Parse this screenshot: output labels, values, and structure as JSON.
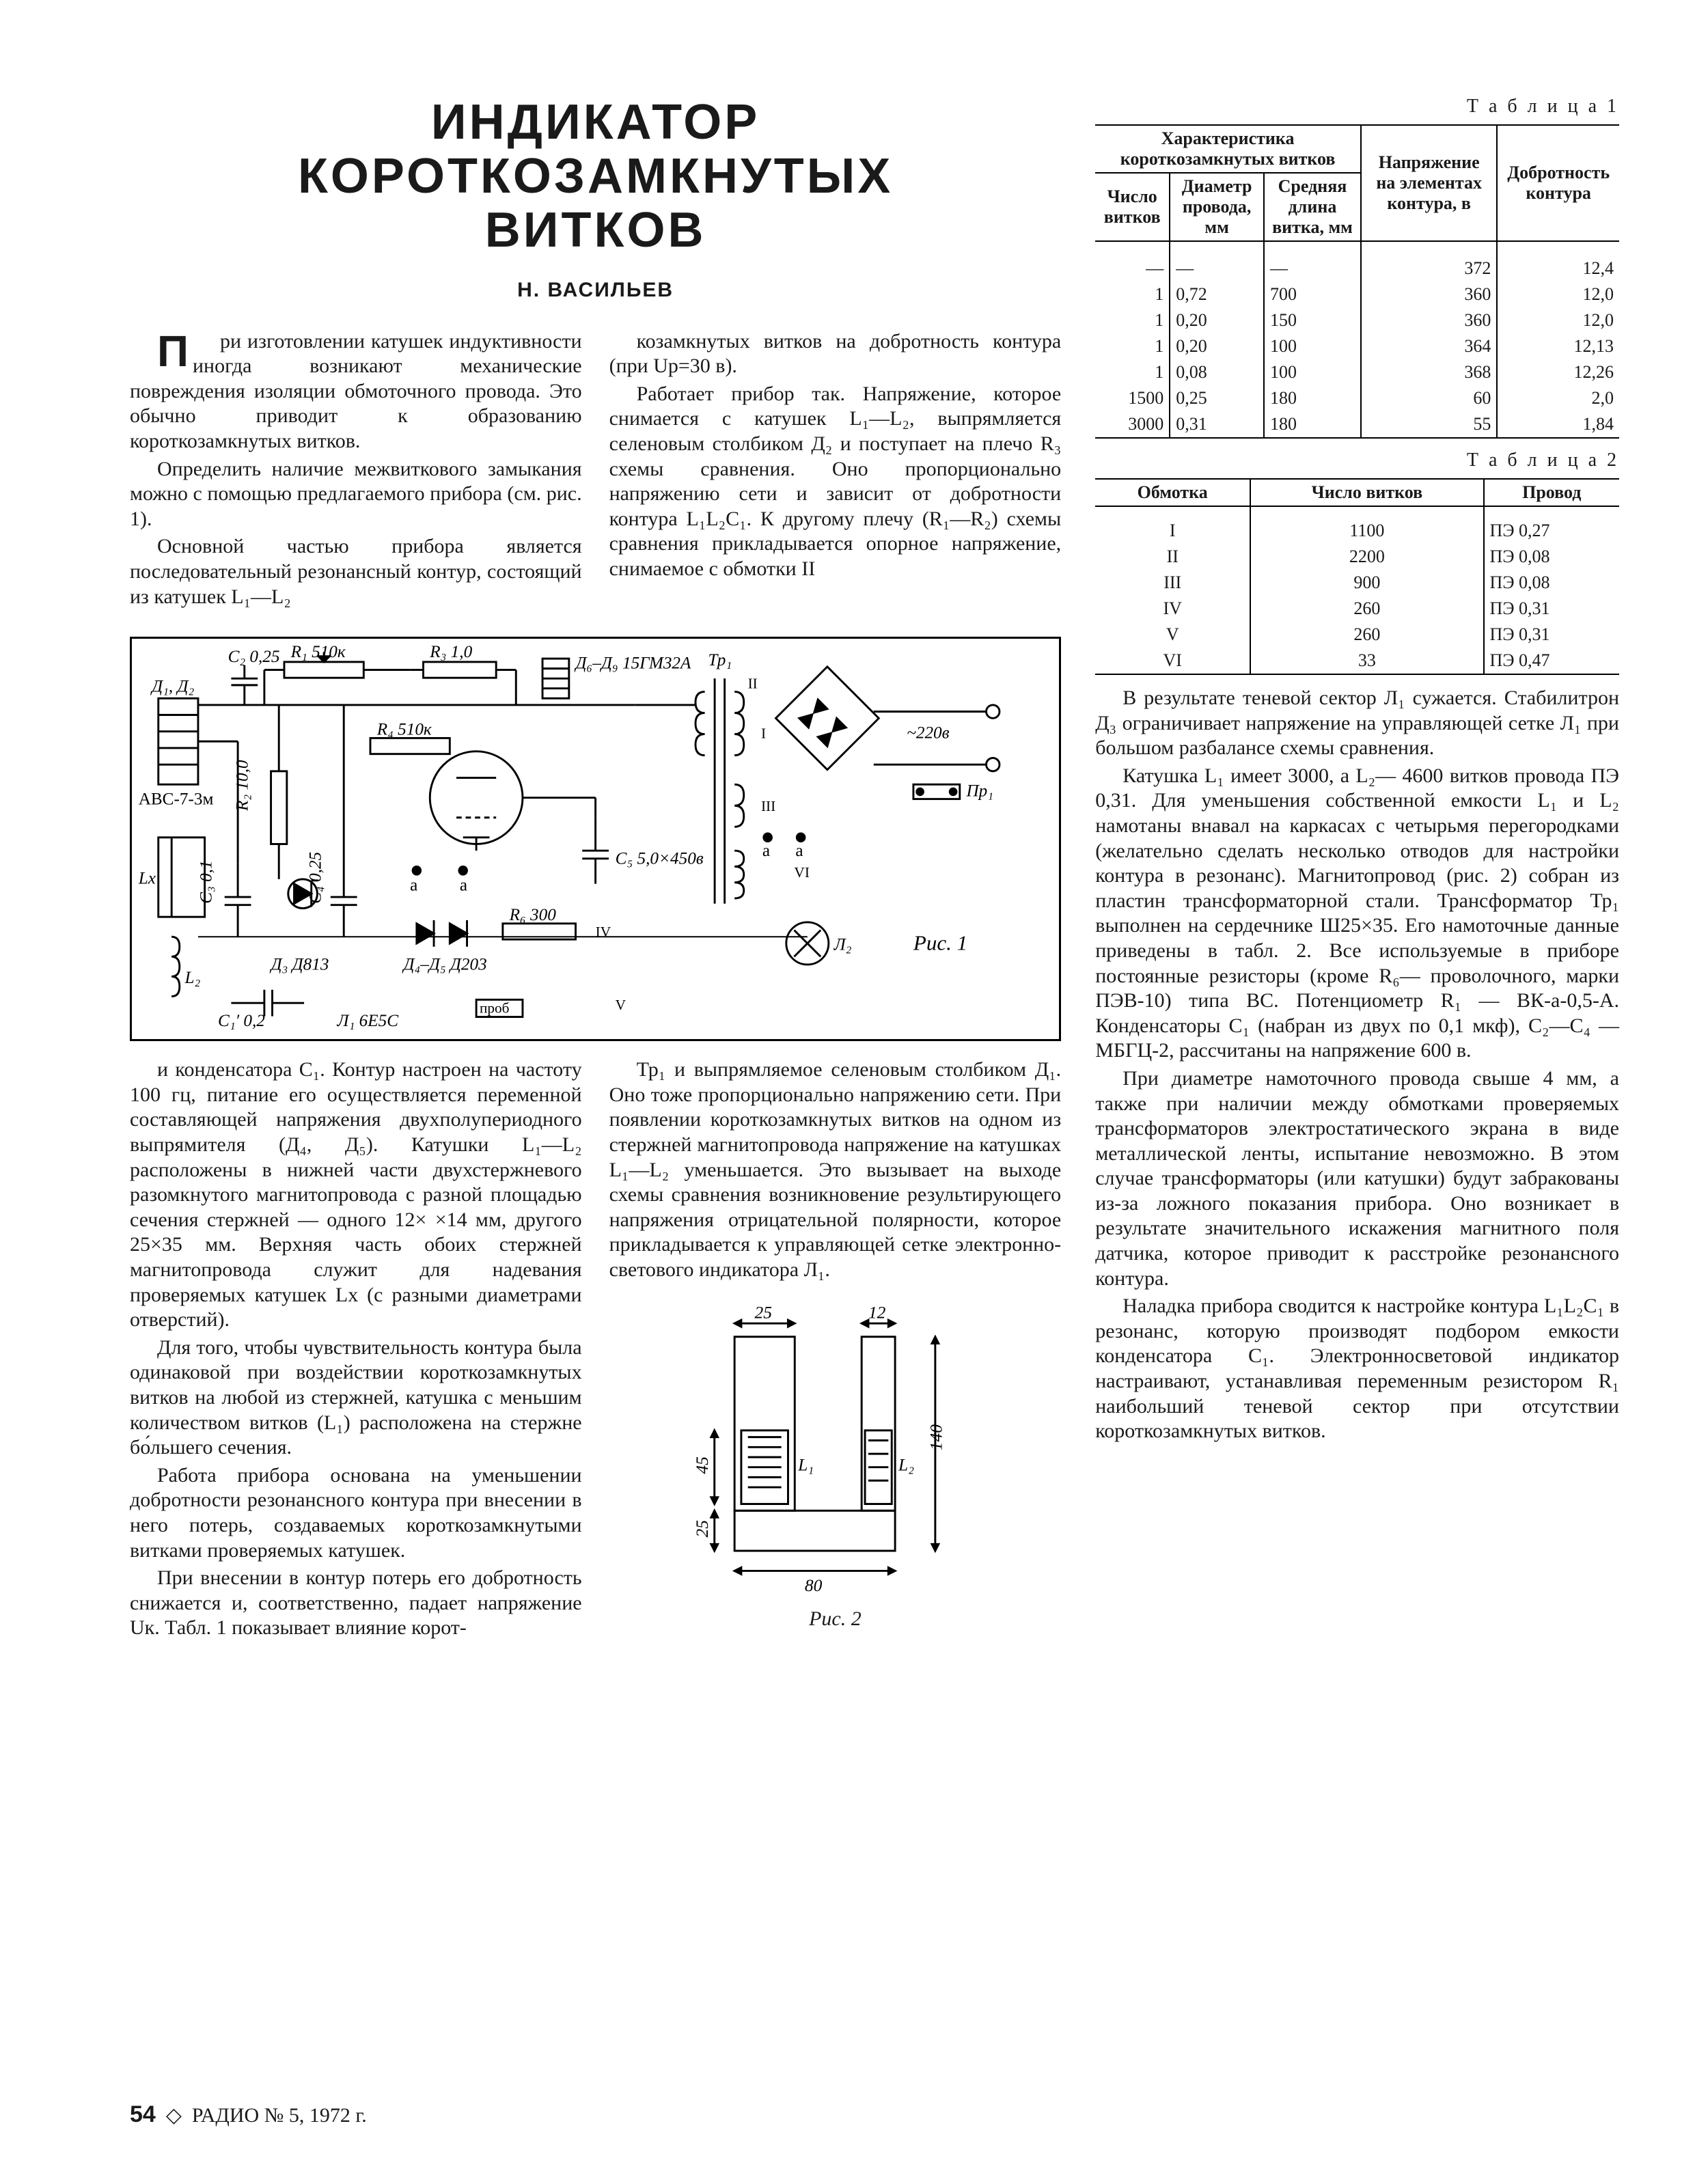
{
  "title_line1": "ИНДИКАТОР",
  "title_line2": "КОРОТКОЗАМКНУТЫХ",
  "title_line3": "ВИТКОВ",
  "author": "Н. ВАСИЛЬЕВ",
  "p_left": [
    "При изготовлении катушек индуктивности иногда возникают механические повреждения изоляции обмоточного провода. Это обычно приводит к образованию короткозамкнутых витков.",
    "Определить наличие межвиткового замыкания можно с помощью предлагаемого прибора (см. рис. 1).",
    "Основной частью прибора является последовательный резонансный контур, состоящий из катушек L₁—L₂",
    "козамкнутых витков на добротность контура (при Uр=30 в).",
    "Работает прибор так. Напряжение, которое снимается с катушек L₁—L₂, выпрямляется селеновым столбиком Д₂ и поступает на плечо R₃ схемы сравнения. Оно пропорционально напряжению сети и зависит от добротности контура L₁L₂C₁. К другому плечу (R₁—R₂) схемы сравнения прикладывается опорное напряжение, снимаемое с обмотки II"
  ],
  "p_after_schematic": [
    "и конденсатора C₁. Контур настроен на частоту 100 гц, питание его осуществляется переменной составляющей напряжения двухполупериодного выпрямителя (Д₄, Д₅). Катушки L₁—L₂ расположены в нижней части двухстержневого разомкнутого магнитопровода с разной площадью сечения стержней — одного 12× ×14 мм, другого 25×35 мм. Верхняя часть обоих стержней магнитопровода служит для надевания проверяемых катушек Lx (с разными диаметрами отверстий).",
    "Для того, чтобы чувствительность контура была одинаковой при воздействии короткозамкнутых витков на любой из стержней, катушка с меньшим количеством витков (L₁) расположена на стержне бо́льшего сечения.",
    "Работа прибора основана на уменьшении добротности резонансного контура при внесении в него потерь, создаваемых короткозамкнутыми витками проверяемых катушек.",
    "При внесении в контур потерь его добротность снижается и, соответственно, падает напряжение Uк. Табл. 1 показывает влияние корот-",
    "Тр₁ и выпрямляемое селеновым столбиком Д₁. Оно тоже пропорционально напряжению сети. При появлении короткозамкнутых витков на одном из стержней магнитопровода напряжение на катушках L₁—L₂ уменьшается. Это вызывает на выходе схемы сравнения возникновение результирующего напряжения отрицательной полярности, которое прикладывается к управляющей сетке электронно-светового индикатора Л₁."
  ],
  "p_right": [
    "В результате теневой сектор Л₁ сужается. Стабилитрон Д₃ ограничивает напряжение на управляющей сетке Л₁ при большом разбалансе схемы сравнения.",
    "Катушка L₁ имеет 3000, а L₂— 4600 витков провода ПЭ 0,31. Для уменьшения собственной емкости L₁ и L₂ намотаны внавал на каркасах с четырьмя перегородками (желательно сделать несколько отводов для настройки контура в резонанс). Магнитопровод (рис. 2) собран из пластин трансформаторной стали. Трансформатор Тр₁ выполнен на сердечнике Ш25×35. Его намоточные данные приведены в табл. 2. Все используемые в приборе постоянные резисторы (кроме R₆— проволочного, марки ПЭВ-10) типа ВС. Потенциометр R₁ — ВК-а-0,5-А. Конденсаторы C₁ (набран из двух по 0,1 мкф), C₂—C₄ — МБГЦ-2, рассчитаны на напряжение 600 в.",
    "При диаметре намоточного провода свыше 4 мм, а также при наличии между обмотками проверяемых трансформаторов электростатического экрана в виде металлической ленты, испытание невозможно. В этом случае трансформаторы (или катушки) будут забракованы из-за ложного показания прибора. Оно возникает в результате значительного искажения магнитного поля датчика, которое приводит к расстройке резонансного контура.",
    "Наладка прибора сводится к настройке контура L₁L₂C₁ в резонанс, которую производят подбором емкости конденсатора C₁. Электронносветовой индикатор настраивают, устанавливая переменным резистором R₁ наибольший теневой сектор при отсутствии короткозамкнутых витков."
  ],
  "table1": {
    "label": "Т а б л и ц а 1",
    "h_group": "Характеристика короткозамкнутых витков",
    "h_turns": "Число витков",
    "h_diam": "Диаметр провода, мм",
    "h_len": "Средняя длина витка, мм",
    "h_volt": "Напряжение на элементах контура, в",
    "h_q": "Добротность контура",
    "rows": [
      {
        "n": "—",
        "d": "—",
        "l": "—",
        "v": "372",
        "q": "12,4"
      },
      {
        "n": "1",
        "d": "0,72",
        "l": "700",
        "v": "360",
        "q": "12,0"
      },
      {
        "n": "1",
        "d": "0,20",
        "l": "150",
        "v": "360",
        "q": "12,0"
      },
      {
        "n": "1",
        "d": "0,20",
        "l": "100",
        "v": "364",
        "q": "12,13"
      },
      {
        "n": "1",
        "d": "0,08",
        "l": "100",
        "v": "368",
        "q": "12,26"
      },
      {
        "n": "1500",
        "d": "0,25",
        "l": "180",
        "v": "60",
        "q": "2,0"
      },
      {
        "n": "3000",
        "d": "0,31",
        "l": "180",
        "v": "55",
        "q": "1,84"
      }
    ]
  },
  "table2": {
    "label": "Т а б л и ц а 2",
    "h_wind": "Обмотка",
    "h_turns": "Число витков",
    "h_wire": "Провод",
    "rows": [
      {
        "w": "I",
        "n": "1100",
        "p": "ПЭ 0,27"
      },
      {
        "w": "II",
        "n": "2200",
        "p": "ПЭ 0,08"
      },
      {
        "w": "III",
        "n": "900",
        "p": "ПЭ 0,08"
      },
      {
        "w": "IV",
        "n": "260",
        "p": "ПЭ 0,31"
      },
      {
        "w": "V",
        "n": "260",
        "p": "ПЭ 0,31"
      },
      {
        "w": "VI",
        "n": "33",
        "p": "ПЭ 0,47"
      }
    ]
  },
  "schematic": {
    "caption": "Рис. 1",
    "components": {
      "D1D2": "Д₁, Д₂",
      "AVS": "АВС-7-3м",
      "C2": "C₂ 0,25",
      "R1": "R₁ 510к",
      "R3": "R₃ 1,0",
      "D6D9": "Д₆–Д₉ 15ГМ32А",
      "Tp1": "Тр₁",
      "R2": "R₂ 10,0",
      "R4": "R₄ 510к",
      "C3": "C₃ 0,1",
      "C4": "C₄ 0,25",
      "D3": "Д₃ Д813",
      "D4D5": "Д₄–Д₅ Д203",
      "R6": "R₆ 300",
      "C1": "C₁′ 0,2",
      "L1": "Л₁ 6Е5С",
      "C5": "C₅ 5,0×450в",
      "net220": "~220в",
      "Pr1": "Пр₁",
      "L1coil": "L₁",
      "L2coil": "L₂",
      "Lx": "Lx",
      "Lp2": "Л₂",
      "prob": "проб",
      "a": "a",
      "roman": [
        "I",
        "II",
        "III",
        "IV",
        "V",
        "VI"
      ]
    }
  },
  "fig2": {
    "caption": "Рис. 2",
    "dims": {
      "top25": "25",
      "top12": "12",
      "h140": "140",
      "h45": "45",
      "h25": "25",
      "w80": "80"
    },
    "L1": "L₁",
    "L2": "L₂"
  },
  "footer": {
    "page": "54",
    "src": "РАДИО № 5, 1972 г."
  }
}
